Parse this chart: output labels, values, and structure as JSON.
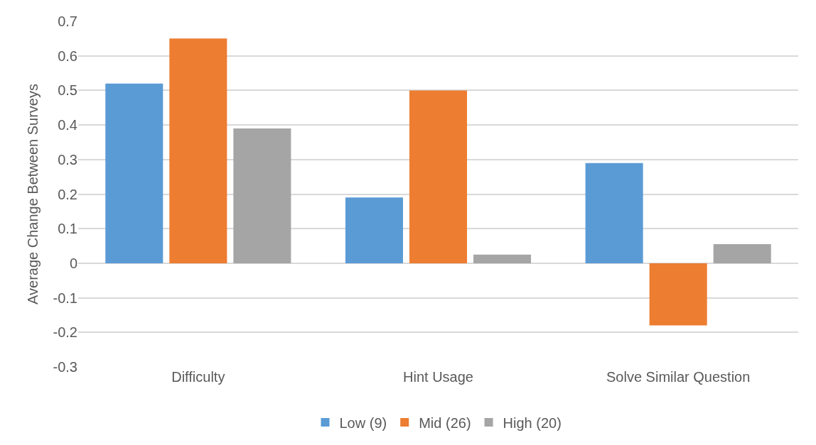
{
  "chart_data": {
    "type": "bar",
    "ylabel": "Average Change Between Surveys",
    "categories": [
      "Difficulty",
      "Hint Usage",
      "Solve Similar Question"
    ],
    "series": [
      {
        "name": "Low (9)",
        "color": "#5b9bd5",
        "values": [
          0.52,
          0.19,
          0.29
        ]
      },
      {
        "name": "Mid (26)",
        "color": "#ed7d31",
        "values": [
          0.65,
          0.5,
          -0.18
        ]
      },
      {
        "name": "High (20)",
        "color": "#a5a5a5",
        "values": [
          0.39,
          0.025,
          0.055
        ]
      }
    ],
    "ylim": [
      -0.3,
      0.7
    ],
    "yticks": [
      -0.3,
      -0.2,
      -0.1,
      0,
      0.1,
      0.2,
      0.3,
      0.4,
      0.5,
      0.6,
      0.7
    ],
    "grid": "y",
    "legend": "bottom"
  }
}
